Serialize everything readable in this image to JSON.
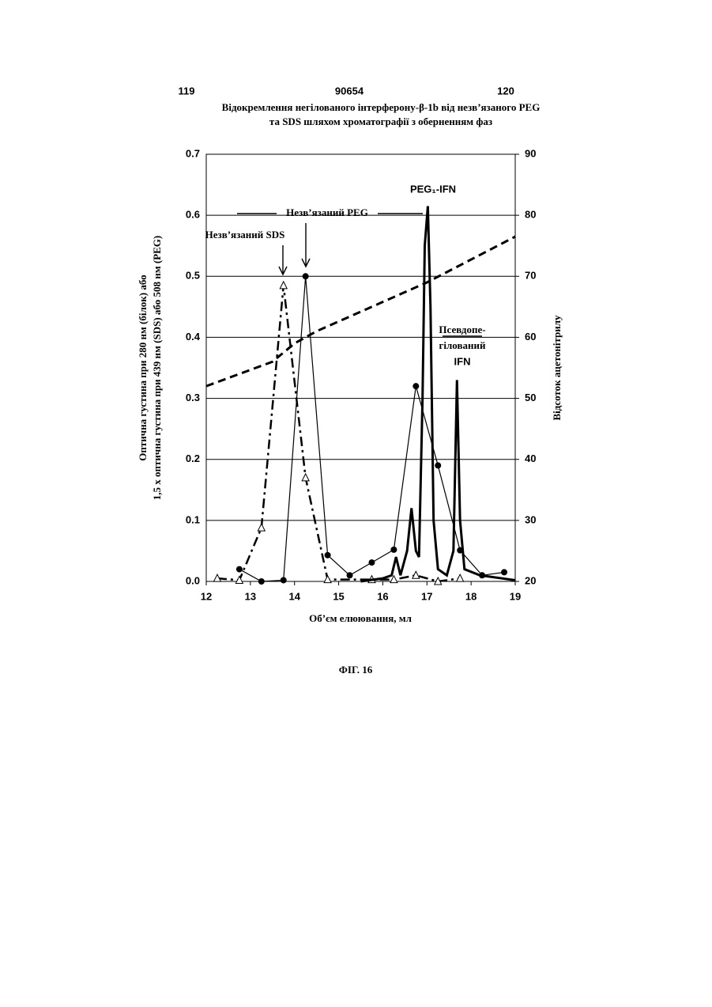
{
  "header": {
    "left_page": "119",
    "number": "90654",
    "right_page": "120"
  },
  "title_lines": [
    "Відокремлення негілованого інтерферону-β-1b від незв’язаного PEG",
    "та SDS шляхом хроматографії з оберненням фаз"
  ],
  "chart_data": {
    "type": "line",
    "ylabel_lines": [
      "Оптична густина при 280 нм (білок) або",
      "1,5 х оптична густина при 439 нм (SDS) або 508 нм (PEG)"
    ],
    "y2label": "Відсоток ацетонітрилу",
    "xlabel": "Об’єм елюювання, мл",
    "xlim": [
      12,
      19
    ],
    "xticks": [
      12,
      13,
      14,
      15,
      16,
      17,
      18,
      19
    ],
    "ylim": [
      0,
      0.7
    ],
    "yticks": [
      {
        "value": 0,
        "label": "0.0"
      },
      0.1,
      0.2,
      0.3,
      0.4,
      0.5,
      0.6,
      0.7
    ],
    "y2lim": [
      20,
      90
    ],
    "y2ticks": [
      20,
      30,
      40,
      50,
      60,
      70,
      80,
      90
    ],
    "grid": true,
    "series": [
      {
        "color": "#000000",
        "dash": "dashdot",
        "marker": "triangle",
        "width": 2.5,
        "x": [
          12.25,
          12.75,
          13.25,
          13.75,
          14.25,
          14.75,
          15.75,
          16.25,
          16.75,
          17.25,
          17.75
        ],
        "values": [
          0.005,
          0.002,
          0.088,
          0.485,
          0.17,
          0.003,
          0.003,
          0.003,
          0.01,
          0.0,
          0.005
        ]
      },
      {
        "color": "#000000",
        "dash": "solid",
        "marker": "circle",
        "width": 1.2,
        "x": [
          12.75,
          13.25,
          13.75,
          14.25,
          14.75,
          15.25,
          15.75,
          16.25,
          16.75,
          17.25,
          17.75,
          18.25,
          18.75
        ],
        "values": [
          0.02,
          0.0,
          0.002,
          0.5,
          0.043,
          0.01,
          0.031,
          0.052,
          0.32,
          0.19,
          0.051,
          0.01,
          0.015
        ]
      },
      {
        "color": "#000000",
        "dash": "solid",
        "marker": null,
        "width": 3,
        "x": [
          15.5,
          16.0,
          16.2,
          16.3,
          16.4,
          16.55,
          16.65,
          16.75,
          16.82,
          16.9,
          16.95,
          17.02,
          17.08,
          17.15,
          17.25,
          17.45,
          17.6,
          17.68,
          17.75,
          17.85,
          18.2,
          19.0
        ],
        "values": [
          0.0,
          0.005,
          0.01,
          0.04,
          0.01,
          0.05,
          0.12,
          0.05,
          0.04,
          0.3,
          0.55,
          0.615,
          0.45,
          0.1,
          0.02,
          0.01,
          0.05,
          0.33,
          0.1,
          0.02,
          0.01,
          0.002
        ]
      },
      {
        "color": "#000000",
        "dash": "dashed",
        "marker": null,
        "width": 3,
        "axis": "y2",
        "x": [
          12.0,
          13.5,
          14.0,
          14.5,
          17.0,
          19.0
        ],
        "values": [
          52,
          56,
          59,
          61,
          69,
          76.5
        ]
      }
    ],
    "annotations": [
      "Незв’язаний SDS",
      "Незв’язаний PEG",
      "PEG₁-IFN",
      "Псевдопе-",
      "гілований",
      "IFN"
    ]
  },
  "caption": "ФІГ. 16"
}
